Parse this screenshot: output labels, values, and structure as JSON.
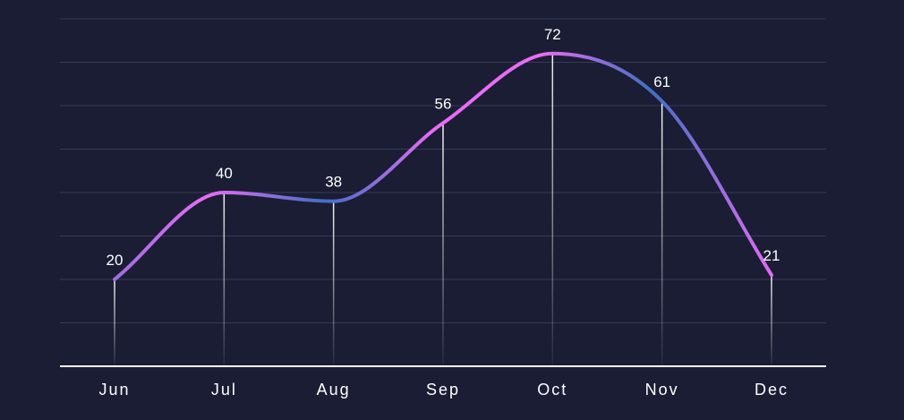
{
  "chart_data": {
    "type": "line",
    "categories": [
      "Jun",
      "Jul",
      "Aug",
      "Sep",
      "Oct",
      "Nov",
      "Dec"
    ],
    "series": [
      {
        "values": [
          20,
          40,
          38,
          56,
          72,
          61,
          21
        ]
      }
    ],
    "data_labels": [
      "20",
      "40",
      "38",
      "56",
      "72",
      "61",
      "21"
    ],
    "ylim": [
      0,
      80
    ],
    "grid": true,
    "smooth": true,
    "colors": {
      "background": "#1a1d33",
      "grid": "#373b55",
      "axis": "#ffffff",
      "text": "#ffffff",
      "line_gradient_a": "#3f6fc4",
      "line_gradient_b": "#e86cf6"
    }
  }
}
